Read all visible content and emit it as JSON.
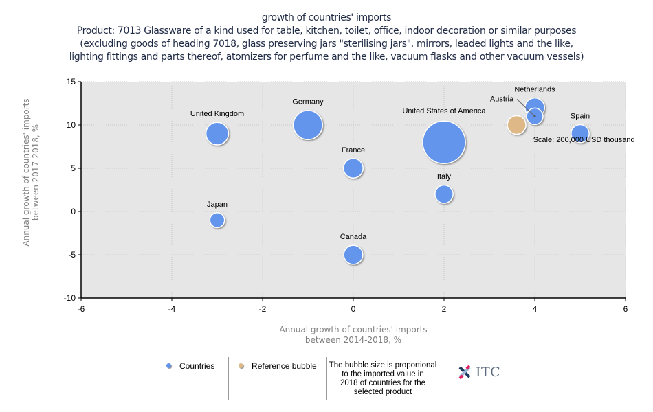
{
  "title": {
    "line1": "growth of countries' imports",
    "line2": "Product: 7013 Glassware of a kind used for table, kitchen, toilet, office, indoor decoration or similar purposes",
    "line3": "(excluding goods of heading 7018, glass preserving jars \"sterilising jars\", mirrors, leaded lights and the like,",
    "line4": "lighting fittings and parts thereof, atomizers for perfume and the like, vacuum flasks and other vacuum vessels)"
  },
  "chart_data": {
    "type": "scatter",
    "subtype": "bubble",
    "title": "growth of countries' imports",
    "xlabel_lines": [
      "Annual growth of countries' imports",
      "between 2014-2018, %"
    ],
    "ylabel_lines": [
      "Annual growth of countries' imports",
      "between 2017-2018, %"
    ],
    "xlim": [
      -6,
      6
    ],
    "ylim": [
      -10,
      15
    ],
    "x_ticks": [
      -6,
      -4,
      -2,
      0,
      2,
      4,
      6
    ],
    "y_ticks": [
      -10,
      -5,
      0,
      5,
      10,
      15
    ],
    "grid": true,
    "colors": {
      "countries": "#6495ed",
      "reference": "#deb887",
      "plot_bg": "#e6e6e6"
    },
    "size_unit": "relative bubble size (proportional to 2018 imported value)",
    "points": [
      {
        "name": "United States of America",
        "x": 2,
        "y": 8,
        "size": 1.0,
        "series": "countries"
      },
      {
        "name": "Germany",
        "x": -1,
        "y": 10,
        "size": 0.47,
        "series": "countries"
      },
      {
        "name": "United Kingdom",
        "x": -3,
        "y": 9,
        "size": 0.28,
        "series": "countries"
      },
      {
        "name": "France",
        "x": 0,
        "y": 5,
        "size": 0.21,
        "series": "countries"
      },
      {
        "name": "Netherlands",
        "x": 4,
        "y": 12,
        "size": 0.21,
        "series": "countries"
      },
      {
        "name": "Austria",
        "x": 4,
        "y": 11,
        "size": 0.15,
        "series": "countries"
      },
      {
        "name": "Spain",
        "x": 5,
        "y": 9,
        "size": 0.18,
        "series": "countries"
      },
      {
        "name": "Italy",
        "x": 2,
        "y": 2,
        "size": 0.18,
        "series": "countries"
      },
      {
        "name": "Japan",
        "x": -3,
        "y": -1,
        "size": 0.12,
        "series": "countries"
      },
      {
        "name": "Canada",
        "x": 0,
        "y": -5,
        "size": 0.2,
        "series": "countries"
      },
      {
        "name": "Scale: 200,000 USD thousand",
        "x": 3.6,
        "y": 10,
        "size": 0.19,
        "series": "reference"
      }
    ],
    "legend": {
      "position": "bottom",
      "items": [
        "Countries",
        "Reference bubble"
      ],
      "note": "The bubble size is proportional to the imported value in 2018 of countries for the selected product"
    }
  },
  "legend": {
    "countries": "Countries",
    "reference": "Reference bubble",
    "note_lines": [
      "The bubble size is proportional",
      "to the imported value in",
      "2018 of countries for the",
      "selected product"
    ],
    "logo_text": "ITC"
  }
}
